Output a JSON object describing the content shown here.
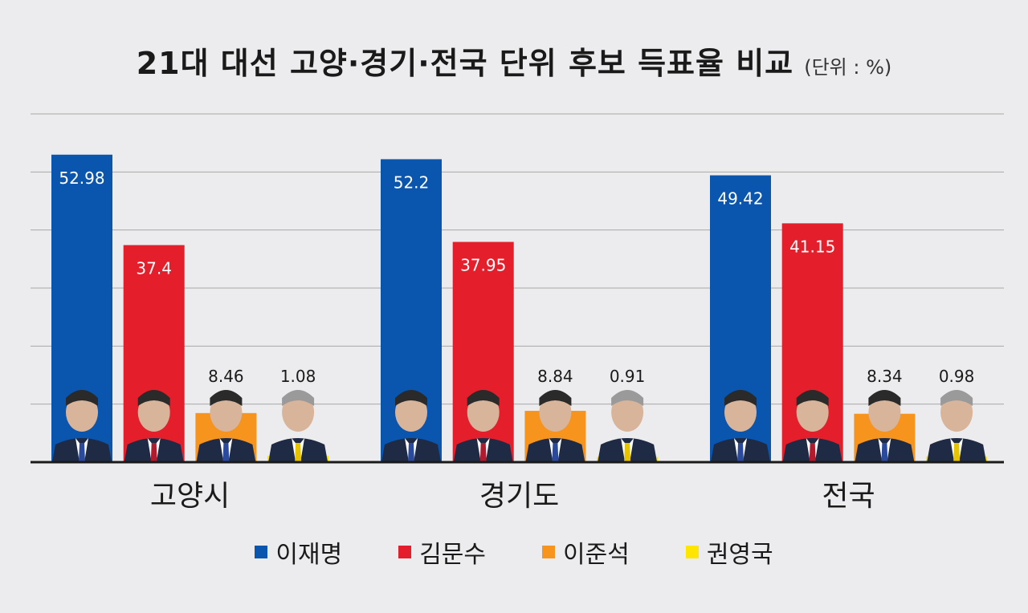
{
  "chart_data": {
    "type": "bar",
    "title": "21대 대선 고양·경기·전국 단위 후보 득표율 비교",
    "unit": "(단위 : %)",
    "categories": [
      "고양시",
      "경기도",
      "전국"
    ],
    "series": [
      {
        "name": "이재명",
        "color": "#0a55ad",
        "values": [
          52.98,
          52.2,
          49.42
        ],
        "labels": [
          "52.98",
          "52.2",
          "49.42"
        ],
        "label_inside": true
      },
      {
        "name": "김문수",
        "color": "#e41e2a",
        "values": [
          37.4,
          37.95,
          41.15
        ],
        "labels": [
          "37.4",
          "37.95",
          "41.15"
        ],
        "label_inside": true
      },
      {
        "name": "이준석",
        "color": "#f7941d",
        "values": [
          8.46,
          8.84,
          8.34
        ],
        "labels": [
          "8.46",
          "8.84",
          "8.34"
        ],
        "label_inside": false
      },
      {
        "name": "권영국",
        "color": "#ffe600",
        "values": [
          1.08,
          0.91,
          0.98
        ],
        "labels": [
          "1.08",
          "0.91",
          "0.98"
        ],
        "label_inside": false
      }
    ],
    "ylim": [
      0,
      60
    ],
    "gridlines": [
      10,
      20,
      30,
      40,
      50,
      60
    ],
    "grid": true,
    "legend_position": "bottom"
  }
}
